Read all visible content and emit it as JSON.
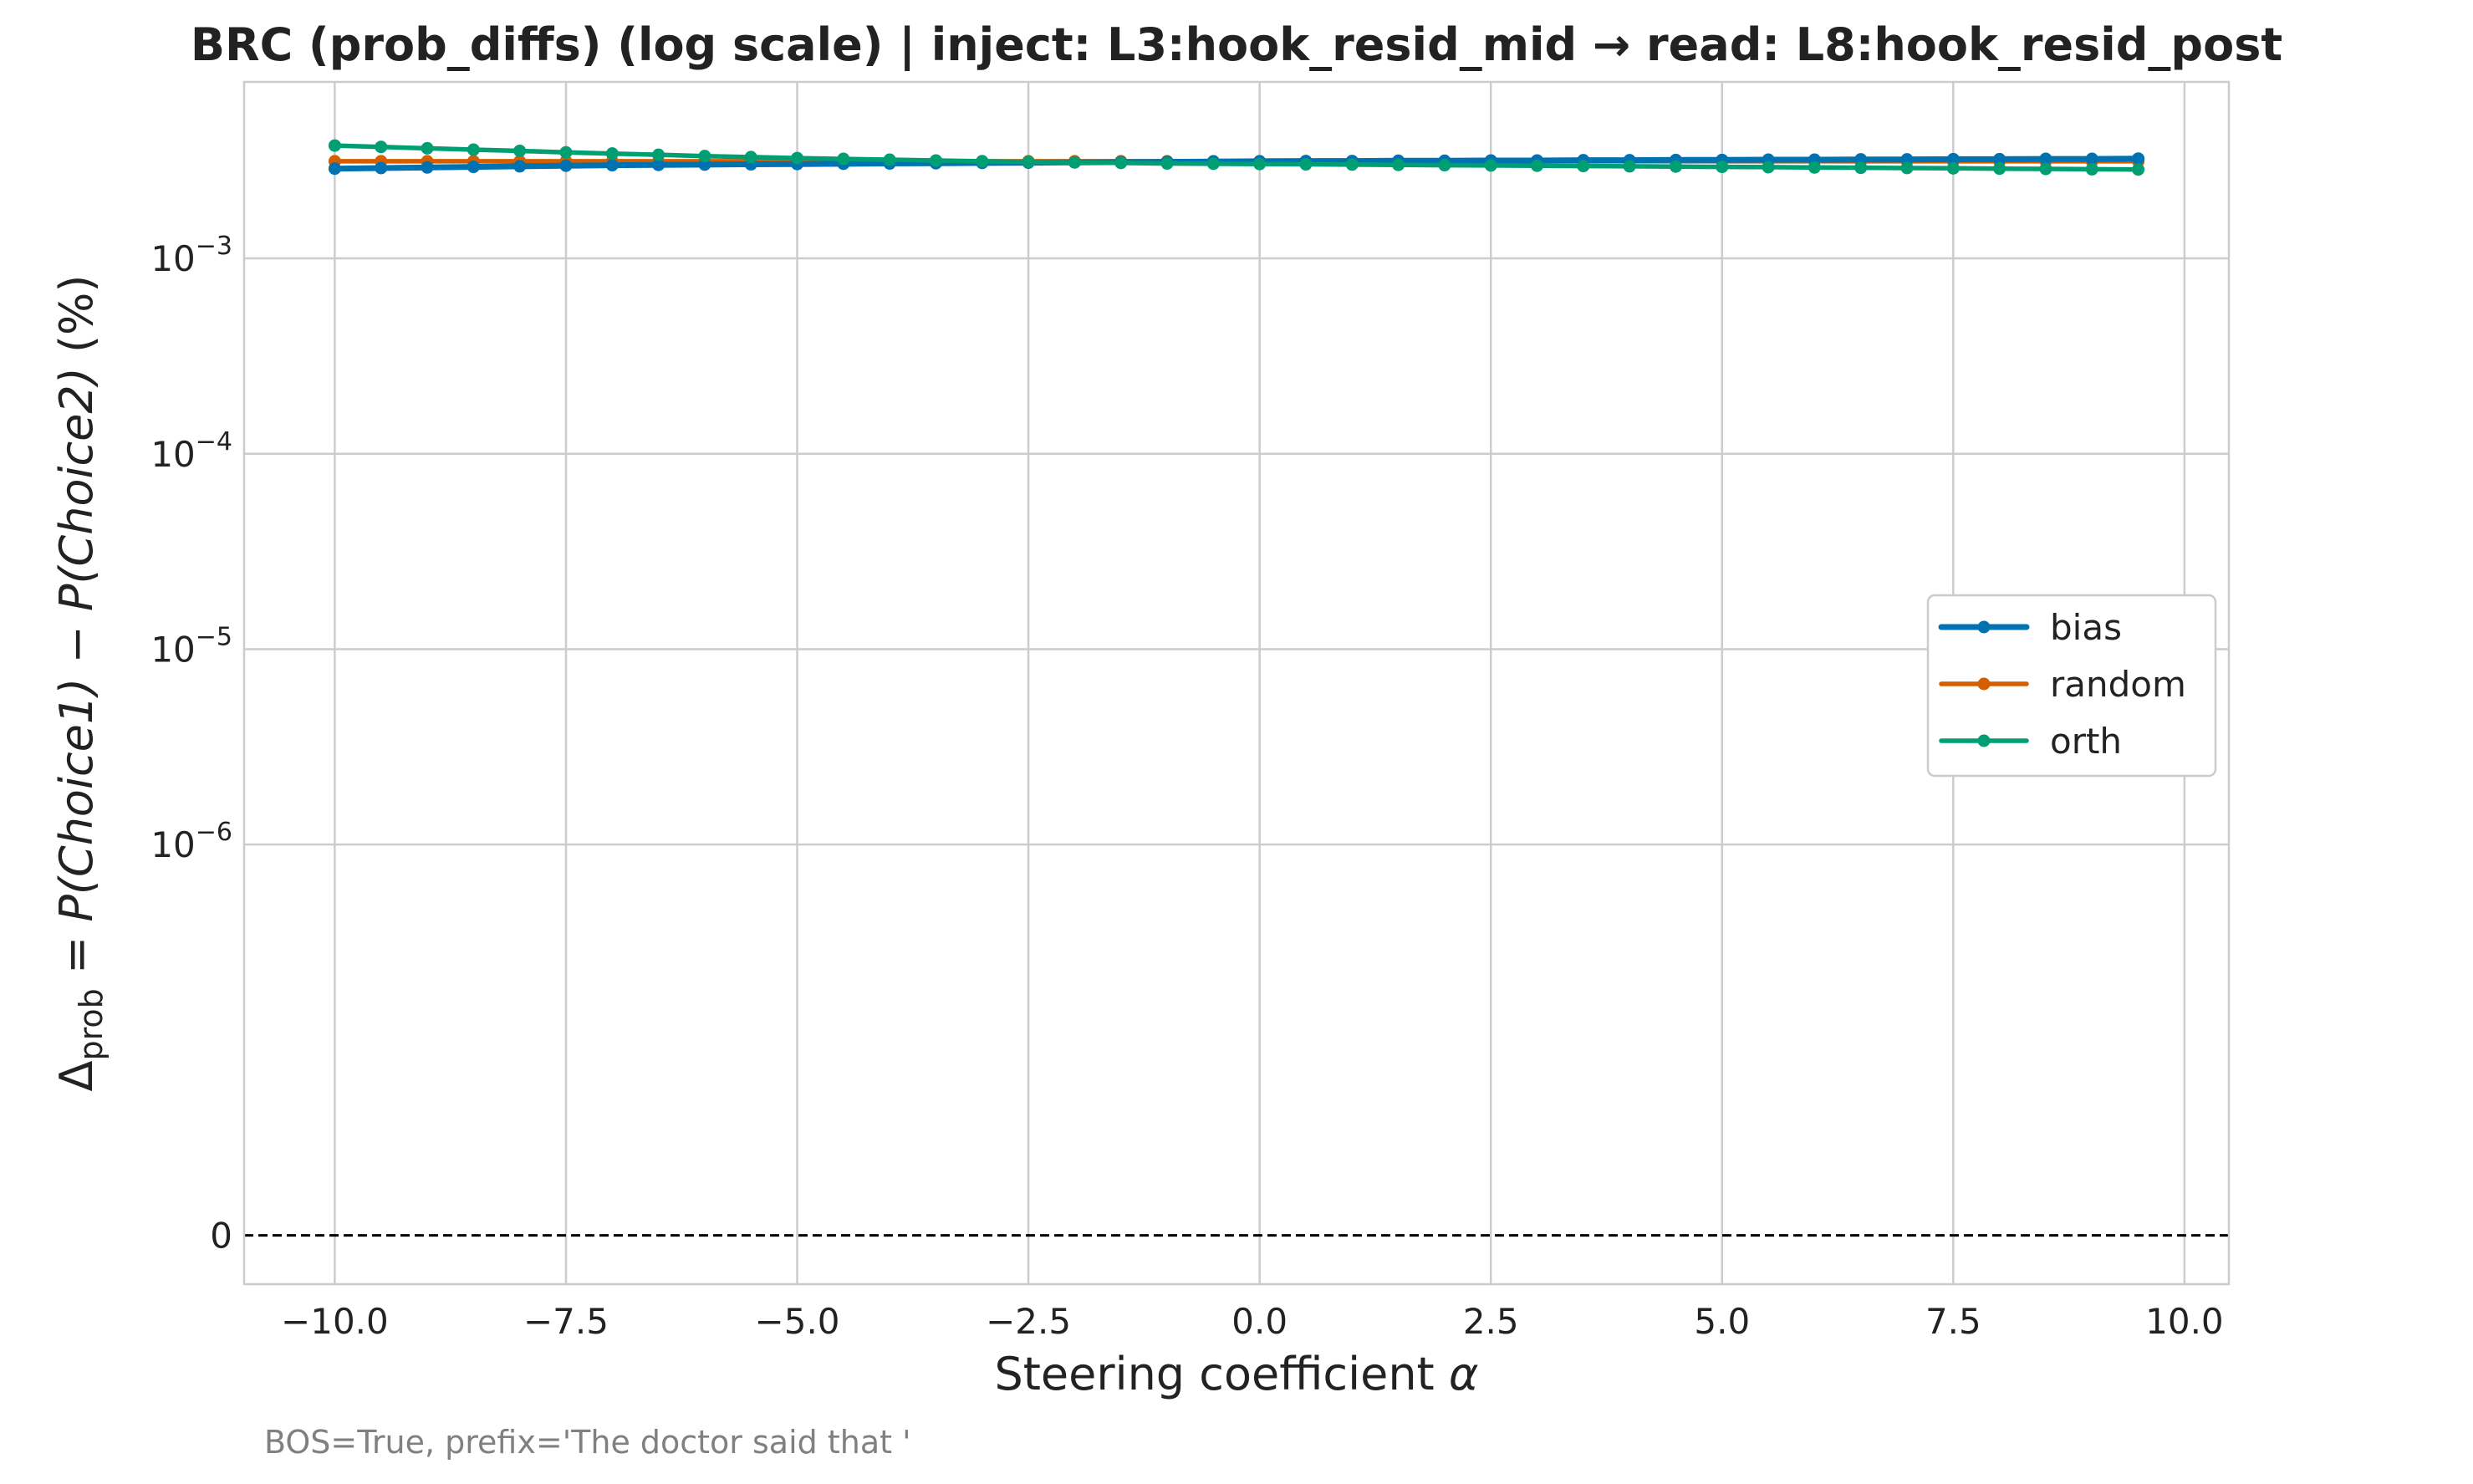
{
  "chart_data": {
    "type": "line",
    "title": "BRC (prob_diffs) (log scale) | inject: L3:hook_resid_mid → read: L8:hook_resid_post",
    "xlabel": "Steering coefficient α",
    "ylabel": "Δprob = P(Choice1) − P(Choice2) (%)",
    "ylabel_parts": {
      "delta": "Δ",
      "sub": "prob",
      "eq": " = ",
      "p1": "P",
      "c1": "(Choice1)",
      "minus": " − ",
      "p2": "P",
      "c2": "(Choice2)",
      "pct": " (%)"
    },
    "xlabel_parts": {
      "text": "Steering coefficient ",
      "sym": "α"
    },
    "xlim": [
      -10.98,
      10.48
    ],
    "x_ticks": [
      {
        "value": -10.0,
        "label": "−10.0"
      },
      {
        "value": -7.5,
        "label": "−7.5"
      },
      {
        "value": -5.0,
        "label": "−5.0"
      },
      {
        "value": -2.5,
        "label": "−2.5"
      },
      {
        "value": 0.0,
        "label": "0.0"
      },
      {
        "value": 2.5,
        "label": "2.5"
      },
      {
        "value": 5.0,
        "label": "5.0"
      },
      {
        "value": 7.5,
        "label": "7.5"
      },
      {
        "value": 10.0,
        "label": "10.0"
      }
    ],
    "yscale": "symlog",
    "linthresh": 1e-07,
    "ylim": [
      -2.5e-08,
      0.008
    ],
    "y_ticks": [
      {
        "value": 0,
        "base": "0",
        "exp": ""
      },
      {
        "value": 1e-06,
        "base": "10",
        "exp": "−6"
      },
      {
        "value": 1e-05,
        "base": "10",
        "exp": "−5"
      },
      {
        "value": 0.0001,
        "base": "10",
        "exp": "−4"
      },
      {
        "value": 0.001,
        "base": "10",
        "exp": "−3"
      }
    ],
    "zero_line": {
      "y": 0,
      "style": "dashed",
      "color": "#000000"
    },
    "grid": true,
    "legend": {
      "position": "center-right"
    },
    "x": [
      -10.0,
      -9.5,
      -9.0,
      -8.5,
      -8.0,
      -7.5,
      -7.0,
      -6.5,
      -6.0,
      -5.5,
      -5.0,
      -4.5,
      -4.0,
      -3.5,
      -3.0,
      -2.5,
      -2.0,
      -1.5,
      -1.0,
      -0.5,
      0.0,
      0.5,
      1.0,
      1.5,
      2.0,
      2.5,
      3.0,
      3.5,
      4.0,
      4.5,
      5.0,
      5.5,
      6.0,
      6.5,
      7.0,
      7.5,
      8.0,
      8.5,
      9.0,
      9.5
    ],
    "series": [
      {
        "name": "random",
        "color": "#d55e00",
        "values": [
          0.00314,
          0.00314,
          0.00314,
          0.00314,
          0.00314,
          0.00314,
          0.00314,
          0.00314,
          0.00314,
          0.00314,
          0.00314,
          0.00314,
          0.00314,
          0.00314,
          0.00314,
          0.00314,
          0.00314,
          0.00314,
          0.00314,
          0.00314,
          0.00314,
          0.00314,
          0.00314,
          0.00314,
          0.00314,
          0.00314,
          0.00314,
          0.00314,
          0.00314,
          0.00314,
          0.00314,
          0.00314,
          0.00314,
          0.00314,
          0.00314,
          0.00314,
          0.00314,
          0.00314,
          0.00314,
          0.00314
        ]
      },
      {
        "name": "bias",
        "color": "#0072b2",
        "values": [
          0.00288,
          0.0029,
          0.00292,
          0.00294,
          0.00296,
          0.00298,
          0.003,
          0.00301,
          0.00302,
          0.00303,
          0.00304,
          0.00305,
          0.00306,
          0.00307,
          0.00308,
          0.00309,
          0.0031,
          0.00311,
          0.00312,
          0.00313,
          0.00314,
          0.00315,
          0.00315,
          0.00316,
          0.00316,
          0.00317,
          0.00317,
          0.00318,
          0.00318,
          0.00319,
          0.00319,
          0.0032,
          0.0032,
          0.00321,
          0.00321,
          0.00322,
          0.00322,
          0.00323,
          0.00323,
          0.00324
        ]
      },
      {
        "name": "orth",
        "color": "#009e73",
        "values": [
          0.00378,
          0.00372,
          0.00366,
          0.0036,
          0.00355,
          0.00349,
          0.00344,
          0.00339,
          0.00334,
          0.0033,
          0.00326,
          0.00323,
          0.0032,
          0.00317,
          0.00314,
          0.00312,
          0.0031,
          0.00308,
          0.00306,
          0.00305,
          0.00304,
          0.00303,
          0.00302,
          0.00301,
          0.003,
          0.00299,
          0.00298,
          0.00297,
          0.00296,
          0.00295,
          0.00294,
          0.00293,
          0.00292,
          0.00291,
          0.0029,
          0.00289,
          0.00288,
          0.00287,
          0.00286,
          0.00285
        ]
      }
    ],
    "legend_order": [
      "bias",
      "random",
      "orth"
    ],
    "footnote": "BOS=True, prefix='The doctor said that '"
  }
}
